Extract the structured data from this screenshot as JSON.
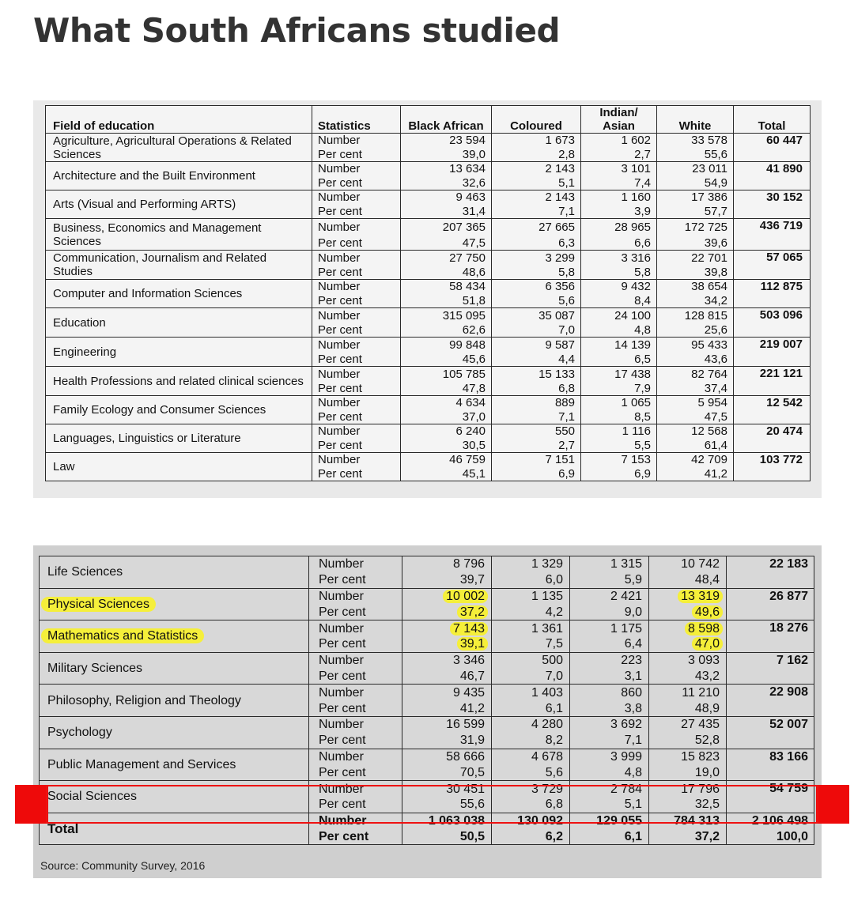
{
  "title": "What South Africans studied",
  "table1": {
    "headers": {
      "field": "Field of education",
      "statistics": "Statistics",
      "black_african": "Black African",
      "coloured": "Coloured",
      "indian_asian": "Indian/ Asian",
      "white": "White",
      "total": "Total"
    },
    "rows": [
      {
        "field": "Agriculture, Agricultural Operations & Related Sciences",
        "number": [
          "23 594",
          "1 673",
          "1 602",
          "33 578"
        ],
        "percent": [
          "39,0",
          "2,8",
          "2,7",
          "55,6"
        ],
        "total": "60 447",
        "stat_number": "Number",
        "stat_percent": "Per cent"
      },
      {
        "field": "Architecture and the Built Environment",
        "number": [
          "13 634",
          "2 143",
          "3 101",
          "23 011"
        ],
        "percent": [
          "32,6",
          "5,1",
          "7,4",
          "54,9"
        ],
        "total": "41 890",
        "stat_number": "Number",
        "stat_percent": "Per cent"
      },
      {
        "field": "Arts (Visual and Performing ARTS)",
        "number": [
          "9 463",
          "2 143",
          "1 160",
          "17 386"
        ],
        "percent": [
          "31,4",
          "7,1",
          "3,9",
          "57,7"
        ],
        "total": "30 152",
        "stat_number": "Number",
        "stat_percent": "Per cent"
      },
      {
        "field": "Business, Economics and Management Sciences",
        "number": [
          "207 365",
          "27 665",
          "28 965",
          "172 725"
        ],
        "percent": [
          "47,5",
          "6,3",
          "6,6",
          "39,6"
        ],
        "total": "436 719",
        "stat_number": "Number",
        "stat_percent": "Per cent"
      },
      {
        "field": "Communication, Journalism and Related Studies",
        "number": [
          "27 750",
          "3 299",
          "3 316",
          "22 701"
        ],
        "percent": [
          "48,6",
          "5,8",
          "5,8",
          "39,8"
        ],
        "total": "57 065",
        "stat_number": "Number",
        "stat_percent": "Per cent"
      },
      {
        "field": "Computer and Information Sciences",
        "number": [
          "58 434",
          "6 356",
          "9 432",
          "38 654"
        ],
        "percent": [
          "51,8",
          "5,6",
          "8,4",
          "34,2"
        ],
        "total": "112 875",
        "stat_number": "Number",
        "stat_percent": "Per cent"
      },
      {
        "field": "Education",
        "number": [
          "315 095",
          "35 087",
          "24 100",
          "128 815"
        ],
        "percent": [
          "62,6",
          "7,0",
          "4,8",
          "25,6"
        ],
        "total": "503 096",
        "stat_number": "Number",
        "stat_percent": "Per cent"
      },
      {
        "field": "Engineering",
        "number": [
          "99 848",
          "9 587",
          "14 139",
          "95 433"
        ],
        "percent": [
          "45,6",
          "4,4",
          "6,5",
          "43,6"
        ],
        "total": "219 007",
        "stat_number": "Number",
        "stat_percent": "Per cent"
      },
      {
        "field": "Health Professions and related clinical sciences",
        "number": [
          "105 785",
          "15 133",
          "17 438",
          "82 764"
        ],
        "percent": [
          "47,8",
          "6,8",
          "7,9",
          "37,4"
        ],
        "total": "221 121",
        "stat_number": "Number",
        "stat_percent": "Per cent"
      },
      {
        "field": "Family Ecology and Consumer Sciences",
        "number": [
          "4 634",
          "889",
          "1 065",
          "5 954"
        ],
        "percent": [
          "37,0",
          "7,1",
          "8,5",
          "47,5"
        ],
        "total": "12 542",
        "stat_number": "Number",
        "stat_percent": "Per cent"
      },
      {
        "field": "Languages, Linguistics or Literature",
        "number": [
          "6 240",
          "550",
          "1 116",
          "12 568"
        ],
        "percent": [
          "30,5",
          "2,7",
          "5,5",
          "61,4"
        ],
        "total": "20 474",
        "stat_number": "Number",
        "stat_percent": "Per cent"
      },
      {
        "field": "Law",
        "number": [
          "46 759",
          "7 151",
          "7 153",
          "42 709"
        ],
        "percent": [
          "45,1",
          "6,9",
          "6,9",
          "41,2"
        ],
        "total": "103 772",
        "stat_number": "Number",
        "stat_percent": "Per cent"
      }
    ]
  },
  "table2": {
    "rows": [
      {
        "field": "Life Sciences",
        "number": [
          "8 796",
          "1 329",
          "1 315",
          "10 742"
        ],
        "percent": [
          "39,7",
          "6,0",
          "5,9",
          "48,4"
        ],
        "total": "22 183",
        "stat_number": "Number",
        "stat_percent": "Per cent"
      },
      {
        "field": "Physical Sciences",
        "number": [
          "10 002",
          "1 135",
          "2 421",
          "13 319"
        ],
        "percent": [
          "37,2",
          "4,2",
          "9,0",
          "49,6"
        ],
        "total": "26 877",
        "stat_number": "Number",
        "stat_percent": "Per cent"
      },
      {
        "field": "Mathematics and Statistics",
        "number": [
          "7 143",
          "1 361",
          "1 175",
          "8 598"
        ],
        "percent": [
          "39,1",
          "7,5",
          "6,4",
          "47,0"
        ],
        "total": "18 276",
        "stat_number": "Number",
        "stat_percent": "Per cent"
      },
      {
        "field": "Military Sciences",
        "number": [
          "3 346",
          "500",
          "223",
          "3 093"
        ],
        "percent": [
          "46,7",
          "7,0",
          "3,1",
          "43,2"
        ],
        "total": "7 162",
        "stat_number": "Number",
        "stat_percent": "Per cent"
      },
      {
        "field": "Philosophy, Religion and Theology",
        "number": [
          "9 435",
          "1 403",
          "860",
          "11 210"
        ],
        "percent": [
          "41,2",
          "6,1",
          "3,8",
          "48,9"
        ],
        "total": "22 908",
        "stat_number": "Number",
        "stat_percent": "Per cent"
      },
      {
        "field": "Psychology",
        "number": [
          "16 599",
          "4 280",
          "3 692",
          "27 435"
        ],
        "percent": [
          "31,9",
          "8,2",
          "7,1",
          "52,8"
        ],
        "total": "52 007",
        "stat_number": "Number",
        "stat_percent": "Per cent"
      },
      {
        "field": "Public Management and Services",
        "number": [
          "58 666",
          "4 678",
          "3 999",
          "15 823"
        ],
        "percent": [
          "70,5",
          "5,6",
          "4,8",
          "19,0"
        ],
        "total": "83 166",
        "stat_number": "Number",
        "stat_percent": "Per cent"
      },
      {
        "field": "Social Sciences",
        "number": [
          "30 451",
          "3 729",
          "2 784",
          "17 796"
        ],
        "percent": [
          "55,6",
          "6,8",
          "5,1",
          "32,5"
        ],
        "total": "54 759",
        "stat_number": "Number",
        "stat_percent": "Per cent"
      }
    ],
    "total_row": {
      "field": "Total",
      "stat_number": "Number",
      "stat_percent": "Per cent",
      "number": [
        "1 063 038",
        "130 092",
        "129 055",
        "784 313",
        "2 106 498"
      ],
      "percent": [
        "50,5",
        "6,2",
        "6,1",
        "37,2",
        "100,0"
      ]
    },
    "source": "Source: Community Survey, 2016"
  },
  "colors": {
    "highlight": "#f5ef3a",
    "annotation_red": "#ee0a0a",
    "title": "#333333"
  }
}
